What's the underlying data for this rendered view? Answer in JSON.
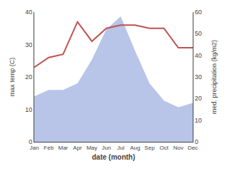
{
  "chart_data": {
    "type": "line",
    "xlabel": "date (month)",
    "ylabel": "max temp (C)",
    "y2label": "med. precipitation (kg/m2)",
    "categories": [
      "Jan",
      "Feb",
      "Mar",
      "Apr",
      "May",
      "Jun",
      "Jul",
      "Aug",
      "Sep",
      "Oct",
      "Nov",
      "Dec"
    ],
    "series": [
      {
        "type": "area",
        "axis": "y2",
        "color": "#b8c4e8",
        "values": [
          21,
          24,
          24,
          27,
          38,
          52,
          58,
          42,
          27,
          19,
          16,
          18
        ]
      },
      {
        "type": "line",
        "color": "#c0504d",
        "values": [
          23,
          26,
          27,
          37,
          31,
          35,
          36,
          36,
          35,
          35,
          29,
          29
        ]
      }
    ],
    "ylim": [
      0,
      40
    ],
    "yticks": [
      0,
      10,
      20,
      30,
      40
    ],
    "y2lim": [
      0,
      60
    ],
    "y2ticks": [
      0,
      10,
      20,
      30,
      40,
      50,
      60
    ],
    "grid": false
  }
}
